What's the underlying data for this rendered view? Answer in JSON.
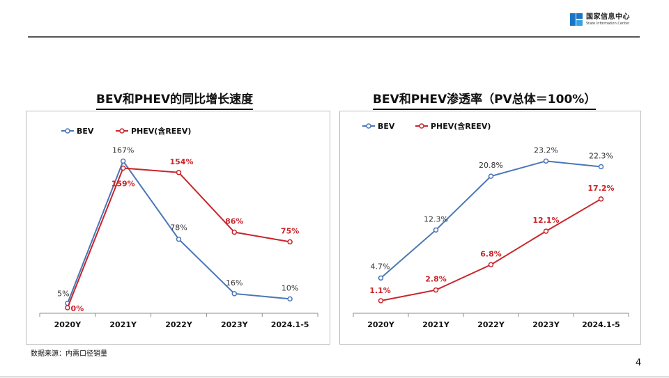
{
  "header": {
    "logo_cn": "国家信息中心",
    "logo_en": "State Information Center"
  },
  "source_note": "数据来源：内需口径销量",
  "page_number": "4",
  "colors": {
    "bev": "#4a76b8",
    "phev": "#c9252b",
    "axis": "#8c8c8c"
  },
  "chart_data": [
    {
      "type": "line",
      "title": "BEV和PHEV的同比增长速度",
      "categories": [
        "2020Y",
        "2021Y",
        "2022Y",
        "2023Y",
        "2024.1-5"
      ],
      "ylim": [
        0,
        180
      ],
      "grid": false,
      "legend": "top-left",
      "series": [
        {
          "name": "BEV",
          "values": [
            5,
            167,
            78,
            16,
            10
          ],
          "labels": [
            "5%",
            "167%",
            "78%",
            "16%",
            "10%"
          ]
        },
        {
          "name": "PHEV(含REEV)",
          "values": [
            0,
            159,
            154,
            86,
            75
          ],
          "labels": [
            "0%",
            "159%",
            "154%",
            "86%",
            "75%"
          ]
        }
      ]
    },
    {
      "type": "line",
      "title": "BEV和PHEV渗透率（PV总体＝100%）",
      "categories": [
        "2020Y",
        "2021Y",
        "2022Y",
        "2023Y",
        "2024.1-5"
      ],
      "ylim": [
        0,
        25
      ],
      "grid": false,
      "legend": "top-left",
      "series": [
        {
          "name": "BEV",
          "values": [
            4.7,
            12.3,
            20.8,
            23.2,
            22.3
          ],
          "labels": [
            "4.7%",
            "12.3%",
            "20.8%",
            "23.2%",
            "22.3%"
          ]
        },
        {
          "name": "PHEV(含REEV)",
          "values": [
            1.1,
            2.8,
            6.8,
            12.1,
            17.2
          ],
          "labels": [
            "1.1%",
            "2.8%",
            "6.8%",
            "12.1%",
            "17.2%"
          ]
        }
      ]
    }
  ]
}
